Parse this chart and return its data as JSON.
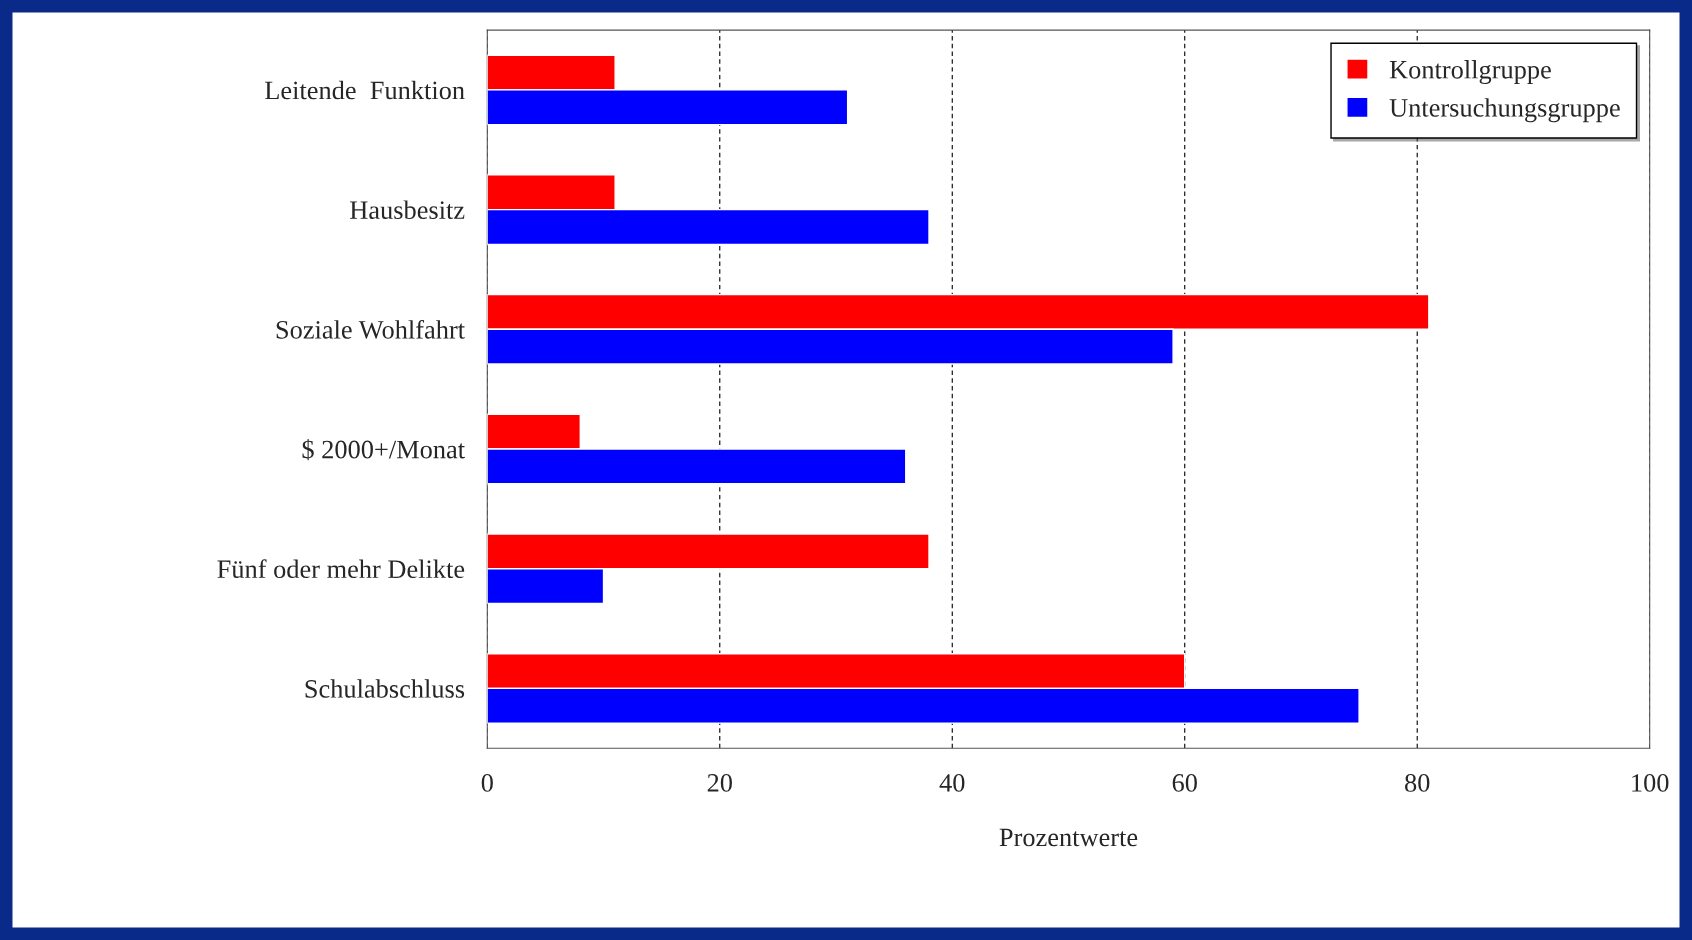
{
  "chart_data": {
    "type": "bar",
    "orientation": "horizontal",
    "xlabel": "Prozentwerte",
    "categories": [
      "Leitende  Funktion",
      "Hausbesitz",
      "Soziale Wohlfahrt",
      "$ 2000+/Monat",
      "Fünf oder mehr Delikte",
      "Schulabschluss"
    ],
    "series": [
      {
        "name": "Kontrollgruppe",
        "color": "#ff0000",
        "values": [
          11,
          11,
          81,
          8,
          38,
          60
        ]
      },
      {
        "name": "Untersuchungsgruppe",
        "color": "#0000ff",
        "values": [
          31,
          38,
          59,
          36,
          10,
          75
        ]
      }
    ],
    "xlim": [
      0,
      100
    ],
    "xticks": [
      0,
      20,
      40,
      60,
      80,
      100
    ],
    "grid": "x",
    "legend": "top right"
  }
}
